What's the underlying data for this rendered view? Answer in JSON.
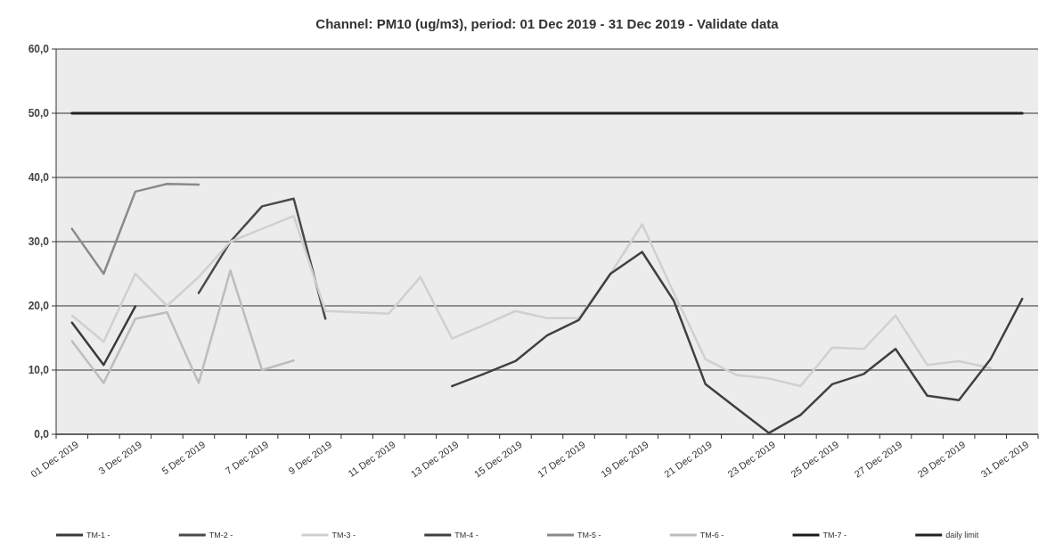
{
  "chart_data": {
    "type": "line",
    "title": "Channel: PM10 (ug/m3), period: 01 Dec 2019 - 31 Dec 2019 - Validate data",
    "categories": [
      "01 Dec 2019",
      null,
      "3 Dec 2019",
      null,
      "5 Dec 2019",
      null,
      "7 Dec 2019",
      null,
      "9 Dec 2019",
      null,
      "11 Dec 2019",
      null,
      "13 Dec 2019",
      null,
      "15 Dec 2019",
      null,
      "17 Dec 2019",
      null,
      "19 Dec 2019",
      null,
      "21 Dec 2019",
      null,
      "23 Dec 2019",
      null,
      "25 Dec 2019",
      null,
      "27 Dec 2019",
      null,
      "29 Dec 2019",
      null,
      "31 Dec 2019"
    ],
    "ylim": [
      0,
      60
    ],
    "yticks": [
      {
        "value": 0,
        "label": "0,0"
      },
      {
        "value": 10,
        "label": "10,0"
      },
      {
        "value": 20,
        "label": "20,0"
      },
      {
        "value": 30,
        "label": "30,0"
      },
      {
        "value": 40,
        "label": "40,0"
      },
      {
        "value": 50,
        "label": "50,0"
      },
      {
        "value": 60,
        "label": "60,0"
      }
    ],
    "grid": "y",
    "legend": "bottom",
    "marker": "none",
    "line_style": "solid",
    "series": [
      {
        "name": "TM-1 -",
        "color": "#3a3a3a",
        "values": [
          17.4,
          10.8,
          19.9,
          null,
          null,
          null,
          null,
          null,
          null,
          null,
          null,
          null,
          null,
          null,
          null,
          null,
          null,
          null,
          null,
          null,
          null,
          null,
          null,
          null,
          null,
          null,
          null,
          null,
          null,
          null,
          null
        ]
      },
      {
        "name": "TM-2 -",
        "color": "#4a4a4a",
        "values": [
          null,
          null,
          null,
          null,
          22,
          30,
          35.5,
          36.7,
          18,
          null,
          null,
          null,
          null,
          null,
          null,
          null,
          null,
          null,
          null,
          null,
          null,
          null,
          null,
          null,
          null,
          null,
          null,
          null,
          null,
          null,
          null
        ]
      },
      {
        "name": "TM-3 -",
        "color": "#d0d0d0",
        "values": [
          18.5,
          14.4,
          25,
          20,
          24.5,
          30,
          32,
          34,
          19.2,
          19,
          18.8,
          24.5,
          14.9,
          17,
          19.2,
          18.1,
          18.1,
          25,
          32.7,
          22,
          11.7,
          9.2,
          8.7,
          7.5,
          13.5,
          13.3,
          18.5,
          10.8,
          11.4,
          10.3,
          null
        ]
      },
      {
        "name": "TM-4 -",
        "color": "#404040",
        "values": [
          null,
          null,
          null,
          null,
          null,
          null,
          null,
          null,
          null,
          null,
          null,
          null,
          7.5,
          9.4,
          11.4,
          15.4,
          17.8,
          25,
          28.4,
          20.8,
          7.8,
          4,
          0.2,
          3,
          7.8,
          9.4,
          13.3,
          6,
          5.3,
          11.7,
          21.1
        ]
      },
      {
        "name": "TM-5 -",
        "color": "#8a8a8a",
        "values": [
          32,
          25,
          37.8,
          39,
          38.9,
          null,
          null,
          null,
          null,
          null,
          null,
          null,
          null,
          null,
          null,
          null,
          null,
          null,
          null,
          null,
          null,
          null,
          null,
          null,
          null,
          null,
          null,
          null,
          null,
          null,
          null
        ]
      },
      {
        "name": "TM-6 -",
        "color": "#bdbdbd",
        "values": [
          14.5,
          8,
          18,
          19,
          8,
          25.5,
          10,
          11.5,
          null,
          null,
          null,
          null,
          null,
          null,
          null,
          null,
          null,
          null,
          null,
          null,
          null,
          null,
          null,
          null,
          null,
          null,
          null,
          null,
          null,
          null,
          null
        ]
      },
      {
        "name": "TM-7 -",
        "color": "#1a1a1a",
        "values": [
          null,
          null,
          null,
          null,
          null,
          null,
          null,
          null,
          null,
          null,
          null,
          null,
          null,
          null,
          null,
          null,
          null,
          null,
          null,
          null,
          null,
          null,
          null,
          null,
          null,
          null,
          null,
          null,
          null,
          null,
          null
        ]
      },
      {
        "name": "daily limit",
        "color": "#222222",
        "values": [
          50,
          50,
          50,
          50,
          50,
          50,
          50,
          50,
          50,
          50,
          50,
          50,
          50,
          50,
          50,
          50,
          50,
          50,
          50,
          50,
          50,
          50,
          50,
          50,
          50,
          50,
          50,
          50,
          50,
          50,
          50
        ]
      }
    ]
  }
}
